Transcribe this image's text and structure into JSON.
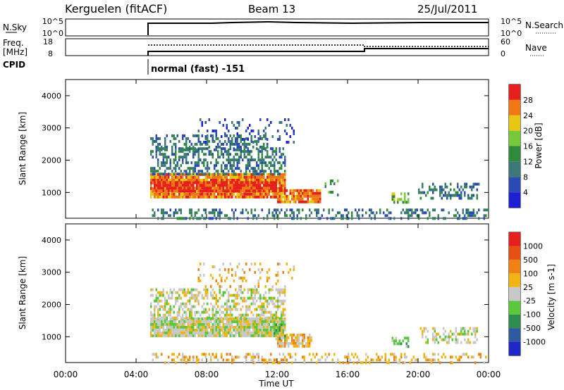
{
  "header": {
    "station": "Kerguelen (fitACF)",
    "beam": "Beam 13",
    "date": "25/Jul/2011"
  },
  "top_panels": {
    "nsky_label": "N.Sky",
    "nsky_ticks": [
      "10^5",
      "10^0"
    ],
    "nsearch_label": "N.Search",
    "nsearch_ticks": [
      "10^5",
      "10^0"
    ],
    "freq_label_1": "Freq.",
    "freq_label_2": "[MHz]",
    "freq_ticks": [
      "18",
      "8"
    ],
    "nave_label": "Nave",
    "nave_ticks": [
      "60",
      "0"
    ],
    "cpid_label": "CPID",
    "cpid_text": "normal (fast) -151"
  },
  "colors": {
    "power": [
      "#1e1ed2",
      "#2a4bb4",
      "#3c7878",
      "#2e8b3c",
      "#78c83c",
      "#e6c814",
      "#f07814",
      "#e61e1e"
    ],
    "velocity": [
      "#1e28c8",
      "#2e5aa0",
      "#2e8c50",
      "#5ac83c",
      "#c8c8c8",
      "#f0b414",
      "#f08214",
      "#e65014",
      "#e61e1e"
    ]
  },
  "chart_data": [
    {
      "type": "heatmap",
      "parameter": "power",
      "ylabel": "Slant Range [km]",
      "yticks": [
        "4000",
        "3000",
        "2000",
        "1000"
      ],
      "ylim": [
        200,
        4500
      ],
      "xlim": [
        "00:00",
        "24:00"
      ],
      "colorbar_label": "Power [dB]",
      "colorbar_ticks": [
        "28",
        "24",
        "20",
        "16",
        "12",
        "8",
        "4"
      ],
      "clim": [
        0,
        30
      ],
      "patches": [
        {
          "t0": 4.8,
          "t1": 12.5,
          "r0": 900,
          "r1": 1600,
          "level": 6,
          "density": 0.95
        },
        {
          "t0": 5.0,
          "t1": 12.0,
          "r0": 1050,
          "r1": 1350,
          "level": 7,
          "density": 0.85
        },
        {
          "t0": 12.0,
          "t1": 14.5,
          "r0": 700,
          "r1": 1100,
          "level": 6,
          "density": 0.85
        },
        {
          "t0": 4.8,
          "t1": 12.5,
          "r0": 1600,
          "r1": 2400,
          "level": 2,
          "density": 0.5
        },
        {
          "t0": 4.8,
          "t1": 11.5,
          "r0": 2300,
          "r1": 2800,
          "level": 2,
          "density": 0.4
        },
        {
          "t0": 7.5,
          "t1": 13.0,
          "r0": 2600,
          "r1": 3300,
          "level": 1,
          "density": 0.15
        },
        {
          "t0": 14.5,
          "t1": 15.5,
          "r0": 900,
          "r1": 1400,
          "level": 3,
          "density": 0.25
        },
        {
          "t0": 18.5,
          "t1": 19.5,
          "r0": 700,
          "r1": 1000,
          "level": 4,
          "density": 0.4
        },
        {
          "t0": 20.0,
          "t1": 23.5,
          "r0": 800,
          "r1": 1300,
          "level": 2,
          "density": 0.35
        },
        {
          "t0": 4.8,
          "t1": 24.0,
          "r0": 200,
          "r1": 500,
          "level": 2,
          "density": 0.35
        }
      ]
    },
    {
      "type": "heatmap",
      "parameter": "velocity",
      "ylabel": "Slant Range [km]",
      "yticks": [
        "4000",
        "3000",
        "2000",
        "1000"
      ],
      "ylim": [
        200,
        4500
      ],
      "xlabel": "Time UT",
      "xticks": [
        "00:00",
        "04:00",
        "08:00",
        "12:00",
        "16:00",
        "20:00",
        "00:00"
      ],
      "xlim": [
        "00:00",
        "24:00"
      ],
      "colorbar_label": "Velocity [m s-1]",
      "colorbar_ticks": [
        "1000",
        "500",
        "100",
        "25",
        "-25",
        "-100",
        "-500",
        "-1000"
      ],
      "clim": [
        -1200,
        1200
      ],
      "patches": [
        {
          "t0": 4.8,
          "t1": 12.5,
          "r0": 1000,
          "r1": 1600,
          "level": 4,
          "density": 0.95
        },
        {
          "t0": 12.0,
          "t1": 14.0,
          "r0": 700,
          "r1": 1100,
          "level": 5,
          "density": 0.8
        },
        {
          "t0": 11.8,
          "t1": 12.5,
          "r0": 900,
          "r1": 1500,
          "level": 3,
          "density": 0.6
        },
        {
          "t0": 4.8,
          "t1": 12.5,
          "r0": 1600,
          "r1": 2500,
          "level": 4,
          "density": 0.5
        },
        {
          "t0": 7.5,
          "t1": 13.0,
          "r0": 2600,
          "r1": 3300,
          "level": 5,
          "density": 0.15
        },
        {
          "t0": 18.5,
          "t1": 19.5,
          "r0": 700,
          "r1": 1000,
          "level": 3,
          "density": 0.5
        },
        {
          "t0": 20.0,
          "t1": 23.5,
          "r0": 800,
          "r1": 1300,
          "level": 4,
          "density": 0.35
        },
        {
          "t0": 4.8,
          "t1": 24.0,
          "r0": 200,
          "r1": 500,
          "level": 5,
          "density": 0.3
        }
      ]
    }
  ]
}
